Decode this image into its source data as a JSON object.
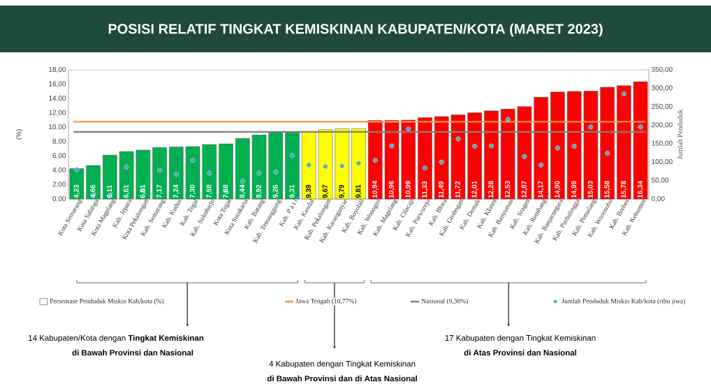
{
  "chart_data": {
    "type": "bar",
    "title": "POSISI RELATIF TINGKAT KEMISKINAN KABUPATEN/KOTA (MARET 2023)",
    "ylabel": "(%)",
    "y2label": "Jumlah Penduduk",
    "categories": [
      "Kota Semarang",
      "Kota Salatiga",
      "Kota Magelang",
      "Kab. Jepara",
      "Kota Pekalongan",
      "Kab. Semarang",
      "Kab. Kudus",
      "Kab. Tegal",
      "Kab. Sukoharjo",
      "Kota Tegal",
      "Kota Surakarta",
      "Kab. Batang",
      "Kab. Temanggung",
      "Kab. P a t i",
      "Kab. Kendal",
      "Kab. Pekalongan",
      "Kab. Karanganyar",
      "Kab. Boyolali",
      "Kab. Wonogiri",
      "Kab. Magelang",
      "Kab. Cilacap",
      "Kab. Purworejo",
      "Kab. Blora",
      "Kab. Grobogan",
      "Kab. Demak",
      "Kab. Klaten",
      "Kab. Banyumas",
      "Kab. Sragen",
      "Kab. Rembang",
      "Kab. Banjarnegara",
      "Kab. Purbalingga",
      "Kab. Pemalang",
      "Kab. Wonosobo",
      "Kab. Brebes",
      "Kab. Kebumen"
    ],
    "series": [
      {
        "name": "Persentase Penduduk Miskin Kab/kota (%)",
        "values": [
          4.23,
          4.66,
          6.11,
          6.61,
          6.81,
          7.17,
          7.24,
          7.3,
          7.58,
          7.68,
          8.44,
          8.92,
          9.26,
          9.31,
          9.39,
          9.67,
          9.79,
          9.81,
          10.94,
          10.96,
          10.99,
          11.33,
          11.49,
          11.72,
          12.01,
          12.28,
          12.53,
          12.87,
          14.17,
          14.9,
          14.99,
          15.03,
          15.58,
          15.78,
          16.34
        ],
        "value_labels": [
          "4,23",
          "4,66",
          "6,11",
          "6,61",
          "6,81",
          "7,17",
          "7,24",
          "7,30",
          "7,58",
          "7,68",
          "8,44",
          "8,92",
          "9,26",
          "9,31",
          "9,39",
          "9,67",
          "9,79",
          "9,81",
          "10,94",
          "10,96",
          "10,99",
          "11,33",
          "11,49",
          "11,72",
          "12,01",
          "12,28",
          "12,53",
          "12,87",
          "14,17",
          "14,90",
          "14,99",
          "15,03",
          "15,58",
          "15,78",
          "16,34"
        ],
        "colors": [
          "#00b050",
          "#00b050",
          "#00b050",
          "#00b050",
          "#00b050",
          "#00b050",
          "#00b050",
          "#00b050",
          "#00b050",
          "#00b050",
          "#00b050",
          "#00b050",
          "#00b050",
          "#00b050",
          "#ffff00",
          "#ffff00",
          "#ffff00",
          "#ffff00",
          "#ff0000",
          "#ff0000",
          "#ff0000",
          "#ff0000",
          "#ff0000",
          "#ff0000",
          "#ff0000",
          "#ff0000",
          "#ff0000",
          "#ff0000",
          "#ff0000",
          "#ff0000",
          "#ff0000",
          "#ff0000",
          "#ff0000",
          "#ff0000",
          "#ff0000"
        ]
      },
      {
        "type": "scatter",
        "name": "Jumlah Penduduk Miskin Kab/kota (ribu jiwa)",
        "axis": "y2",
        "color": "#4bacc6",
        "values": [
          80,
          11,
          10,
          87,
          23,
          78,
          67,
          105,
          70,
          20,
          48,
          70,
          73,
          118,
          92,
          88,
          89,
          97,
          105,
          144,
          190,
          84,
          100,
          163,
          143,
          144,
          216,
          115,
          92,
          138,
          143,
          195,
          124,
          285,
          195
        ]
      }
    ],
    "ylim": [
      0,
      18
    ],
    "yticks": [
      {
        "value": 0,
        "label": "0,00"
      },
      {
        "value": 2,
        "label": "2,00"
      },
      {
        "value": 4,
        "label": "4,00"
      },
      {
        "value": 6,
        "label": "6,00"
      },
      {
        "value": 8,
        "label": "8,00"
      },
      {
        "value": 10,
        "label": "10,00"
      },
      {
        "value": 12,
        "label": "12,00"
      },
      {
        "value": 14,
        "label": "14,00"
      },
      {
        "value": 16,
        "label": "16,00"
      },
      {
        "value": 18,
        "label": "18,00"
      }
    ],
    "y2lim": [
      0,
      350
    ],
    "y2ticks": [
      {
        "value": 0,
        "label": "0,00"
      },
      {
        "value": 50,
        "label": "50,00"
      },
      {
        "value": 100,
        "label": "100,00"
      },
      {
        "value": 150,
        "label": "150,00"
      },
      {
        "value": 200,
        "label": "200,00"
      },
      {
        "value": 250,
        "label": "250,00"
      },
      {
        "value": 300,
        "label": "300,00"
      },
      {
        "value": 350,
        "label": "350,00"
      }
    ],
    "ref_lines": [
      {
        "axis": "y",
        "value": 10.77,
        "label": "Jawa Tengah (10,77%)",
        "color": "#f79646"
      },
      {
        "axis": "y",
        "value": 9.36,
        "label": "Nasional (9,36%)",
        "color": "#7f7f7f"
      }
    ],
    "marker": "circle",
    "legend": "bottom",
    "grid": false,
    "annotations": [
      "14 Kabupaten/Kota  dengan **Tingkat Kemiskinan**",
      "**di Bawah Provinsi dan Nasional**",
      "4 Kabupaten  dengan Tingkat Kemiskinan",
      "**di Bawah Provinsi dan di Atas Nasional**",
      "17 Kabupaten  dengan Tingkat Kemiskinan",
      "**di Atas Provinsi dan Nasional**"
    ]
  }
}
